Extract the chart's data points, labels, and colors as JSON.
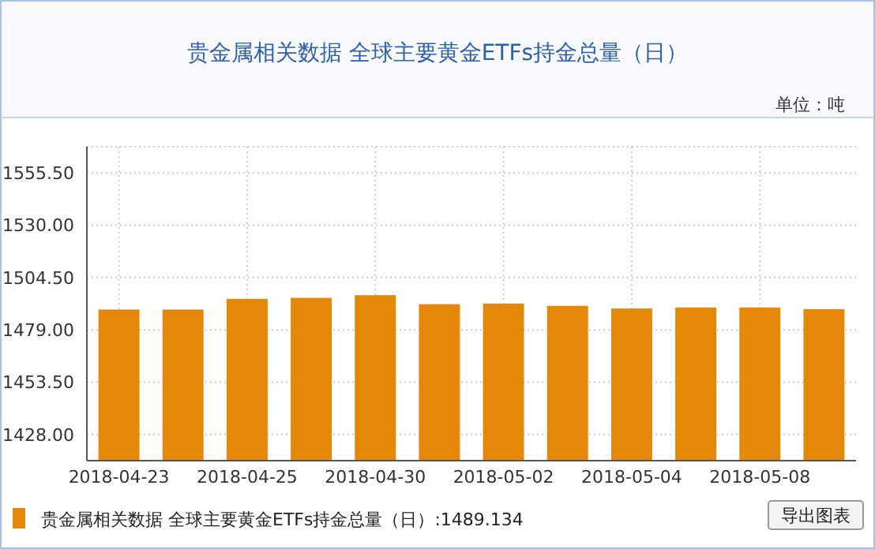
{
  "chart_data": {
    "type": "bar",
    "title": "贵金属相关数据 全球主要黄金ETFs持金总量（日）",
    "annotations": [
      "单位：吨",
      "导出图表"
    ],
    "categories": [
      "2018-04-23",
      null,
      "2018-04-25",
      null,
      "2018-04-30",
      null,
      "2018-05-02",
      null,
      "2018-05-04",
      null,
      "2018-05-08",
      null
    ],
    "series": [
      {
        "name": "贵金属相关数据 全球主要黄金ETFs持金总量（日）:1489.134",
        "color": "#e5880a",
        "values": [
          1488.9,
          1488.9,
          1494.1,
          1494.6,
          1495.9,
          1491.5,
          1491.8,
          1490.7,
          1489.4,
          1489.9,
          1489.9,
          1489.1
        ]
      }
    ],
    "ylim": [
      1415.25,
      1568.25
    ],
    "yticks": [
      {
        "value": 1428,
        "label": "1428.00"
      },
      {
        "value": 1453.5,
        "label": "1453.50"
      },
      {
        "value": 1479,
        "label": "1479.00"
      },
      {
        "value": 1504.5,
        "label": "1504.50"
      },
      {
        "value": 1530,
        "label": "1530.00"
      },
      {
        "value": 1555.5,
        "label": "1555.50"
      }
    ],
    "grid": true,
    "legend": "bottom left"
  }
}
